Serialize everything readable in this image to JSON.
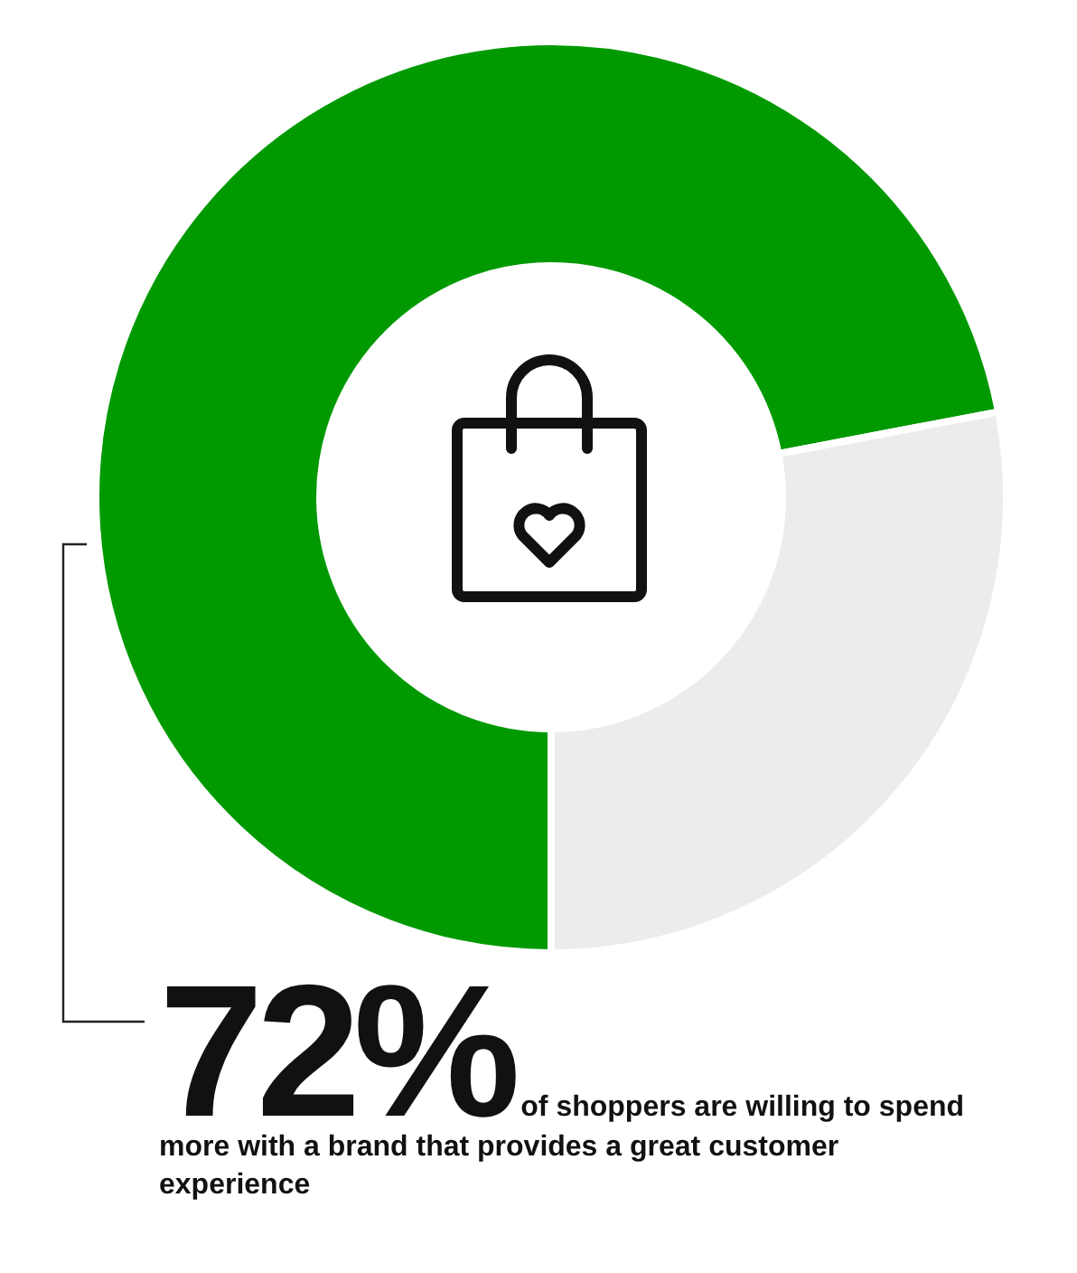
{
  "chart_data": {
    "type": "donut",
    "categories": [
      null,
      null
    ],
    "values": [
      72,
      28
    ],
    "colors": [
      "#009a00",
      "#ececec"
    ],
    "value_labels": [
      "72%",
      null
    ],
    "annotations": [
      "of shoppers are willing to spend more with a brand that provides a great customer experience"
    ]
  }
}
